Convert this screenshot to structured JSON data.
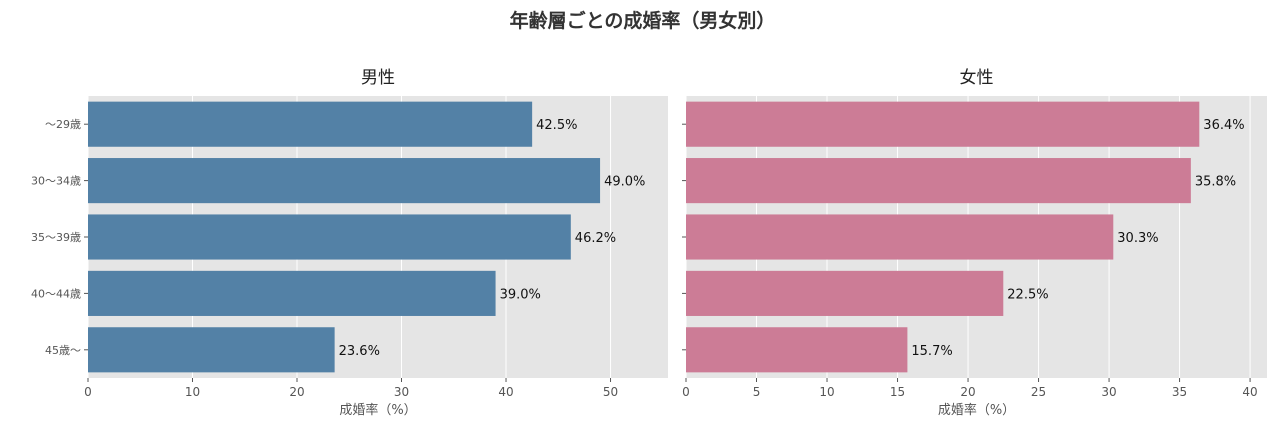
{
  "figure": {
    "title": "年齢層ごとの成婚率（男女別）"
  },
  "chart_data": [
    {
      "type": "bar",
      "orientation": "horizontal",
      "title": "男性",
      "xlabel": "成婚率（%）",
      "ylabel": "",
      "categories": [
        "〜29歳",
        "30〜34歳",
        "35〜39歳",
        "40〜44歳",
        "45歳〜"
      ],
      "values": [
        42.5,
        49.0,
        46.2,
        39.0,
        23.6
      ],
      "value_labels": [
        "42.5%",
        "49.0%",
        "46.2%",
        "39.0%",
        "23.6%"
      ],
      "xlim": [
        0,
        55.5
      ],
      "xticks": [
        0,
        10,
        20,
        30,
        40,
        50
      ],
      "color": "#5381a6",
      "show_category_labels": true,
      "grid": true
    },
    {
      "type": "bar",
      "orientation": "horizontal",
      "title": "女性",
      "xlabel": "成婚率（%）",
      "ylabel": "",
      "categories": [
        "〜29歳",
        "30〜34歳",
        "35〜39歳",
        "40〜44歳",
        "45歳〜"
      ],
      "values": [
        36.4,
        35.8,
        30.3,
        22.5,
        15.7
      ],
      "value_labels": [
        "36.4%",
        "35.8%",
        "30.3%",
        "22.5%",
        "15.7%"
      ],
      "xlim": [
        0,
        41.2
      ],
      "xticks": [
        0,
        5,
        10,
        15,
        20,
        25,
        30,
        35,
        40
      ],
      "color": "#cc7c96",
      "show_category_labels": false,
      "grid": true
    }
  ]
}
